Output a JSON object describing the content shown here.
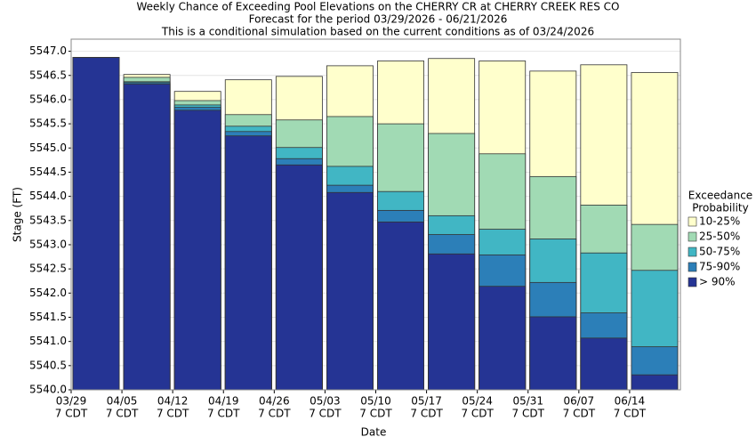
{
  "chart_data": {
    "type": "bar",
    "mode": "overlay",
    "title": "Weekly Chance of Exceeding Pool Elevations on the CHERRY CR at CHERRY CREEK RES CO",
    "subtitle": "Forecast for the period 03/29/2026 - 06/21/2026",
    "note": "This is a conditional simulation based on the current conditions as of 03/24/2026",
    "x_label": "Date",
    "y_label": "Stage (FT)",
    "legend_title": [
      "Exceedance",
      "Probability"
    ],
    "categories": [
      "03/29",
      "04/05",
      "04/12",
      "04/19",
      "04/26",
      "05/03",
      "05/10",
      "05/17",
      "05/24",
      "05/31",
      "06/07",
      "06/14"
    ],
    "category_sublabels": [
      "7 CDT",
      "7 CDT",
      "7 CDT",
      "7 CDT",
      "7 CDT",
      "7 CDT",
      "7 CDT",
      "7 CDT",
      "7 CDT",
      "7 CDT",
      "7 CDT",
      "7 CDT"
    ],
    "series": [
      {
        "name": "10-25%",
        "color": "#ffffcc",
        "values": [
          5546.87,
          5546.52,
          5546.17,
          5546.41,
          5546.48,
          5546.7,
          5546.8,
          5546.85,
          5546.8,
          5546.59,
          5546.72,
          5546.56
        ]
      },
      {
        "name": "25-50%",
        "color": "#a1dab4",
        "values": [
          5546.87,
          5546.46,
          5545.98,
          5545.69,
          5545.58,
          5545.65,
          5545.5,
          5545.3,
          5544.88,
          5544.41,
          5543.82,
          5543.42
        ]
      },
      {
        "name": "50-75%",
        "color": "#41b6c4",
        "values": [
          5546.87,
          5546.37,
          5545.89,
          5545.45,
          5545.01,
          5544.62,
          5544.1,
          5543.6,
          5543.32,
          5543.12,
          5542.83,
          5542.47
        ]
      },
      {
        "name": "75-90%",
        "color": "#2c7fb8",
        "values": [
          5546.87,
          5546.35,
          5545.84,
          5545.34,
          5544.78,
          5544.23,
          5543.71,
          5543.21,
          5542.79,
          5542.22,
          5541.59,
          5540.89
        ]
      },
      {
        "name": "> 90%",
        "color": "#253494",
        "values": [
          5546.87,
          5546.32,
          5545.78,
          5545.25,
          5544.65,
          5544.08,
          5543.47,
          5542.81,
          5542.14,
          5541.51,
          5541.07,
          5540.31
        ]
      }
    ],
    "ylim": [
      5540,
      5547.25
    ],
    "yticks": [
      {
        "value": 5540,
        "label": "5540.0"
      },
      {
        "value": 5540.5,
        "label": "5540.5"
      },
      {
        "value": 5541,
        "label": "5541.0"
      },
      {
        "value": 5541.5,
        "label": "5541.5"
      },
      {
        "value": 5542,
        "label": "5542.0"
      },
      {
        "value": 5542.5,
        "label": "5542.5"
      },
      {
        "value": 5543,
        "label": "5543.0"
      },
      {
        "value": 5543.5,
        "label": "5543.5"
      },
      {
        "value": 5544,
        "label": "5544.0"
      },
      {
        "value": 5544.5,
        "label": "5544.5"
      },
      {
        "value": 5545,
        "label": "5545.0"
      },
      {
        "value": 5545.5,
        "label": "5545.5"
      },
      {
        "value": 5546,
        "label": "5546.0"
      },
      {
        "value": 5546.5,
        "label": "5546.5"
      },
      {
        "value": 5547,
        "label": "5547.0"
      }
    ],
    "grid": true,
    "legend_position": "right"
  }
}
